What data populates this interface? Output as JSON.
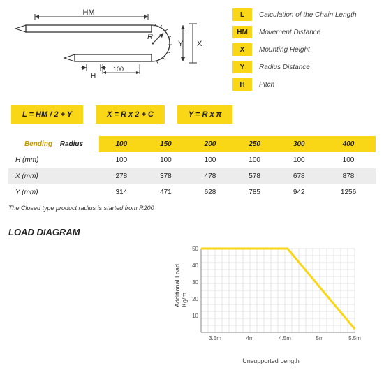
{
  "diagram": {
    "labels": {
      "HM": "HM",
      "R": "R",
      "Y": "Y",
      "X": "X",
      "H": "H",
      "pitch": "100"
    }
  },
  "legend": [
    {
      "key": "L",
      "text": "Calculation of the Chain Length"
    },
    {
      "key": "HM",
      "text": "Movement Distance"
    },
    {
      "key": "X",
      "text": "Mounting Height"
    },
    {
      "key": "Y",
      "text": "Radius Distance"
    },
    {
      "key": "H",
      "text": "Pitch"
    }
  ],
  "formulas": [
    "L = HM / 2 + Y",
    "X = R x 2 + C",
    "Y = R x π"
  ],
  "table": {
    "header_left_a": "Bending",
    "header_left_b": "Radius",
    "radii": [
      "100",
      "150",
      "200",
      "250",
      "300",
      "400"
    ],
    "rows": [
      {
        "label": "H (mm)",
        "vals": [
          "100",
          "100",
          "100",
          "100",
          "100",
          "100"
        ]
      },
      {
        "label": "X (mm)",
        "vals": [
          "278",
          "378",
          "478",
          "578",
          "678",
          "878"
        ]
      },
      {
        "label": "Y (mm)",
        "vals": [
          "314",
          "471",
          "628",
          "785",
          "942",
          "1256"
        ]
      }
    ]
  },
  "note": "The Closed type product radius is started from R200",
  "load": {
    "title": "LOAD DIAGRAM",
    "ylabel": "Additional Load\nKg/m",
    "xlabel": "Unsupported Length",
    "xticks": [
      "3.5m",
      "4m",
      "4.5m",
      "5m",
      "5.5m"
    ],
    "yticks": [
      "10",
      "20",
      "30",
      "40",
      "50"
    ],
    "line_color": "#f9d616",
    "grid_color": "#cccccc",
    "points": [
      [
        0,
        50
      ],
      [
        135,
        50
      ],
      [
        240,
        2
      ]
    ]
  }
}
